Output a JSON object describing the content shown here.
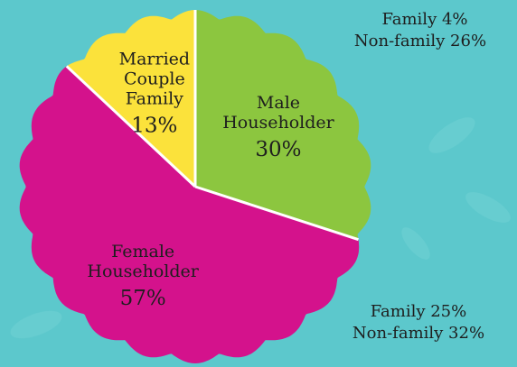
{
  "chart_data": {
    "type": "pie",
    "categories": [
      "Male Householder",
      "Female Householder",
      "Married Couple Family"
    ],
    "values": [
      30,
      57,
      13
    ],
    "value_labels": [
      "30%",
      "57%",
      "13%"
    ],
    "colors": [
      "#8cc63f",
      "#d4128c",
      "#fbe23b"
    ],
    "annotations": [
      "Family 4%",
      "Non-family 26%",
      "Family 25%",
      "Non-family 32%"
    ]
  }
}
